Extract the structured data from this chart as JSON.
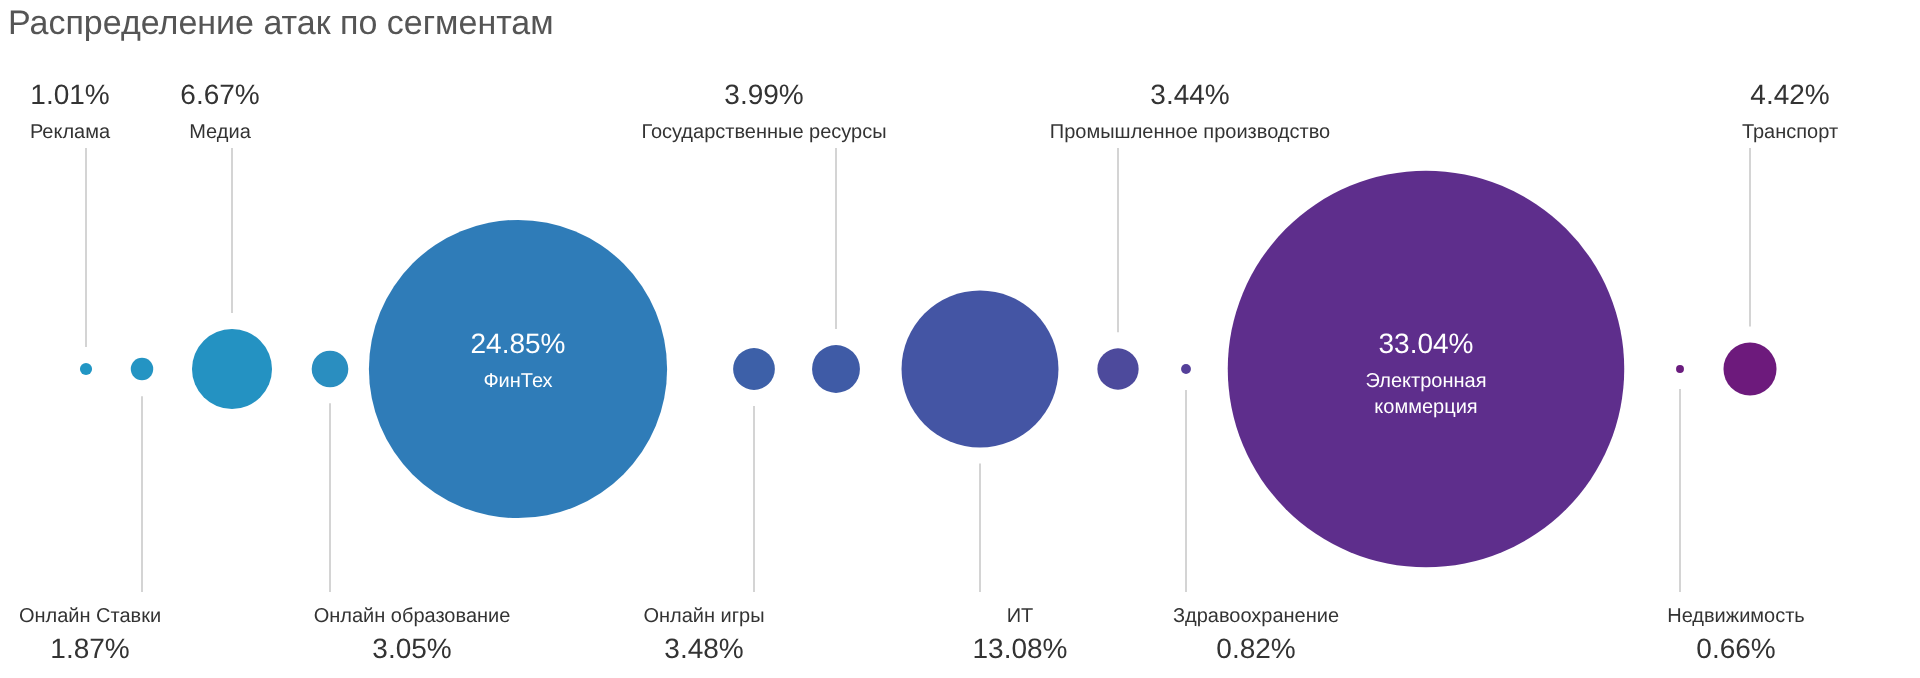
{
  "chart_data": {
    "type": "other",
    "title": "Распределение атак по сегментам",
    "categories": [
      "Реклама",
      "Онлайн Ставки",
      "Медиа",
      "Онлайн образование",
      "ФинТех",
      "Онлайн игры",
      "Государственные ресурсы",
      "ИТ",
      "Промышленное производство",
      "Здравоохранение",
      "Электронная коммерция",
      "Недвижимость",
      "Транспорт"
    ],
    "values": [
      1.01,
      1.87,
      6.67,
      3.05,
      24.85,
      3.48,
      3.99,
      13.08,
      3.44,
      0.82,
      33.04,
      0.66,
      4.42
    ],
    "value_labels": [
      "1.01%",
      "1.87%",
      "6.67%",
      "3.05%",
      "24.85%",
      "3.48%",
      "3.99%",
      "13.08%",
      "3.44%",
      "0.82%",
      "33.04%",
      "0.66%",
      "4.42%"
    ],
    "colors": [
      "#2196c4",
      "#2494c3",
      "#2492c2",
      "#2a8ec0",
      "#2f7cb8",
      "#3d60a8",
      "#3f5ba6",
      "#4455a4",
      "#4d4a9c",
      "#55409a",
      "#5e2e8c",
      "#6a1c7e",
      "#6d1a7c"
    ]
  }
}
